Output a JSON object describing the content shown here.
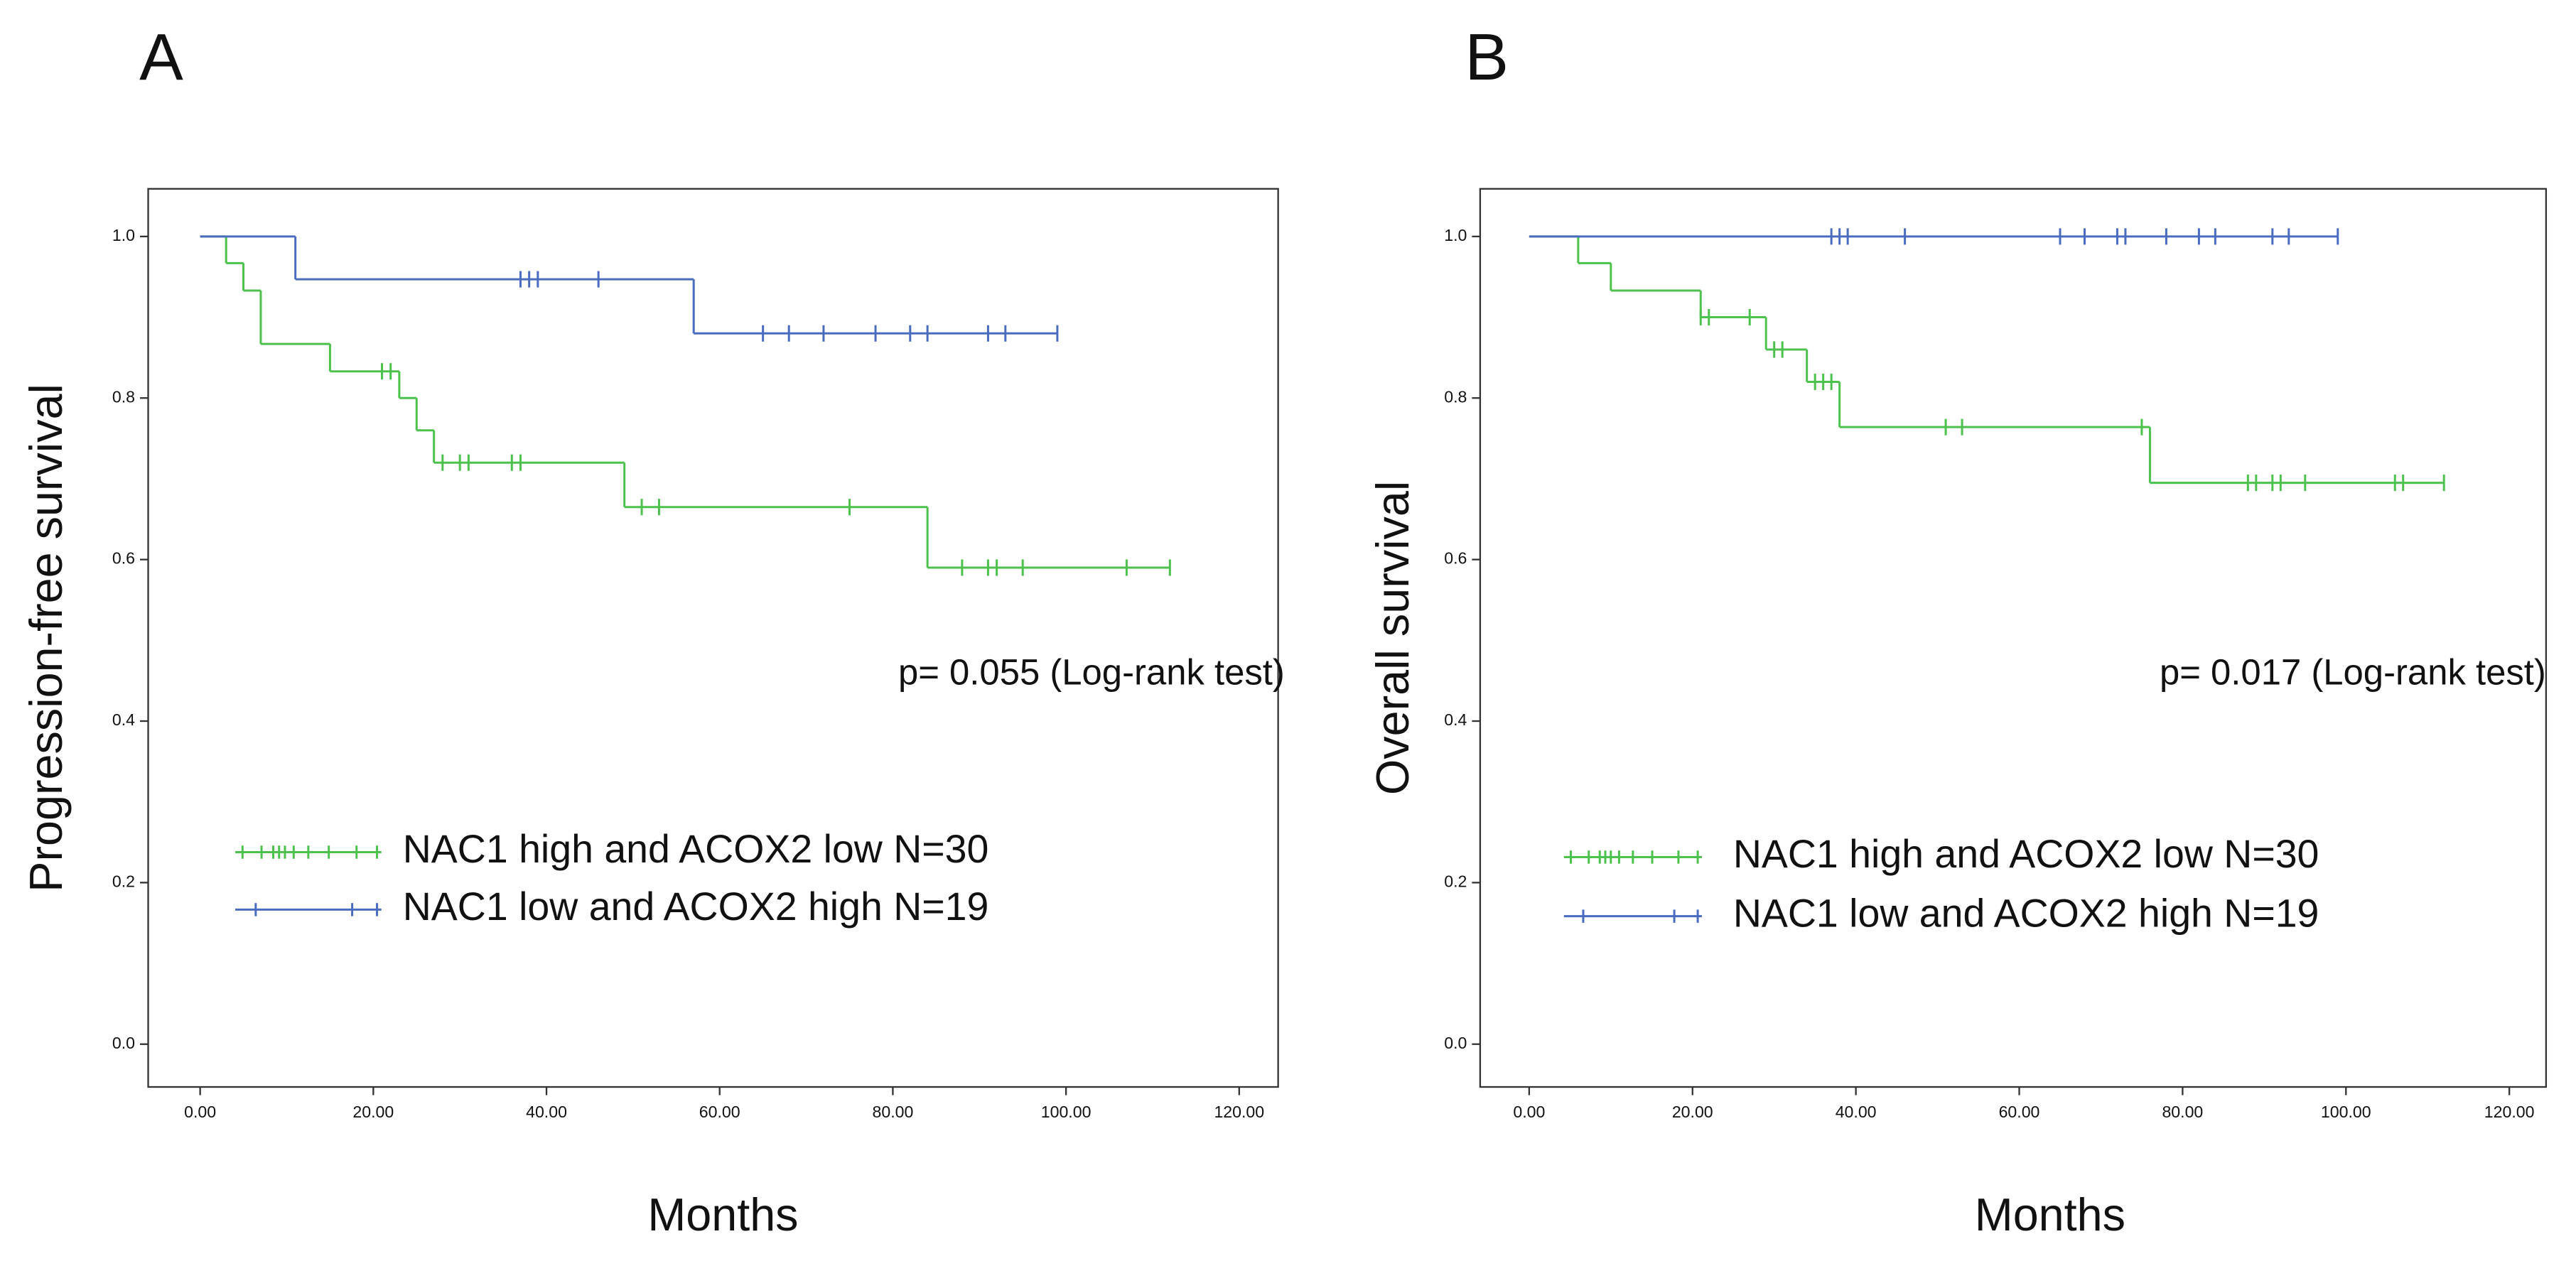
{
  "chart_data": [
    {
      "type": "survival",
      "panel_label": "A",
      "ylabel": "Progression-free survival",
      "xlabel": "Months",
      "annotation": "p= 0.055 (Log-rank test)",
      "xlim": [
        -6,
        124.5
      ],
      "ylim": [
        -0.053,
        1.059
      ],
      "xticks": [
        {
          "value": 0,
          "label": "0.00"
        },
        {
          "value": 20,
          "label": "20.00"
        },
        {
          "value": 40,
          "label": "40.00"
        },
        {
          "value": 60,
          "label": "60.00"
        },
        {
          "value": 80,
          "label": "80.00"
        },
        {
          "value": 100,
          "label": "100.00"
        },
        {
          "value": 120,
          "label": "120.00"
        }
      ],
      "yticks": [
        {
          "value": 0,
          "label": "0.0"
        },
        {
          "value": 0.2,
          "label": "0.2"
        },
        {
          "value": 0.4,
          "label": "0.4"
        },
        {
          "value": 0.6,
          "label": "0.6"
        },
        {
          "value": 0.8,
          "label": "0.8"
        },
        {
          "value": 1,
          "label": "1.0"
        }
      ],
      "series": [
        {
          "name": "NAC1 high and ACOX2 low N=30",
          "color": "#4cc24c",
          "x": [
            0,
            3,
            5,
            7,
            15,
            23,
            25,
            27,
            49,
            84,
            112
          ],
          "values": [
            1,
            0.967,
            0.933,
            0.867,
            0.833,
            0.8,
            0.76,
            0.72,
            0.665,
            0.59,
            0.59
          ],
          "censor_x": [
            21,
            22,
            28,
            30,
            31,
            36,
            37,
            51,
            53,
            75,
            88,
            91,
            92,
            95,
            107,
            112
          ],
          "censor_values": [
            0.833,
            0.833,
            0.72,
            0.72,
            0.72,
            0.72,
            0.72,
            0.665,
            0.665,
            0.665,
            0.59,
            0.59,
            0.59,
            0.59,
            0.59,
            0.59
          ]
        },
        {
          "name": "NAC1 low and ACOX2 high N=19",
          "color": "#4a6cc0",
          "x": [
            0,
            11,
            57,
            99
          ],
          "values": [
            1,
            0.947,
            0.88,
            0.88
          ],
          "censor_x": [
            37,
            38,
            39,
            46,
            65,
            68,
            72,
            78,
            82,
            84,
            91,
            93,
            99
          ],
          "censor_values": [
            0.947,
            0.947,
            0.947,
            0.947,
            0.88,
            0.88,
            0.88,
            0.88,
            0.88,
            0.88,
            0.88,
            0.88,
            0.88
          ]
        }
      ]
    },
    {
      "type": "survival",
      "panel_label": "B",
      "ylabel": "Overall  survival",
      "xlabel": "Months",
      "annotation": "p= 0.017 (Log-rank test)",
      "xlim": [
        -6,
        124.5
      ],
      "ylim": [
        -0.053,
        1.059
      ],
      "xticks": [
        {
          "value": 0,
          "label": "0.00"
        },
        {
          "value": 20,
          "label": "20.00"
        },
        {
          "value": 40,
          "label": "40.00"
        },
        {
          "value": 60,
          "label": "60.00"
        },
        {
          "value": 80,
          "label": "80.00"
        },
        {
          "value": 100,
          "label": "100.00"
        },
        {
          "value": 120,
          "label": "120.00"
        }
      ],
      "yticks": [
        {
          "value": 0,
          "label": "0.0"
        },
        {
          "value": 0.2,
          "label": "0.2"
        },
        {
          "value": 0.4,
          "label": "0.4"
        },
        {
          "value": 0.6,
          "label": "0.6"
        },
        {
          "value": 0.8,
          "label": "0.8"
        },
        {
          "value": 1,
          "label": "1.0"
        }
      ],
      "series": [
        {
          "name": "NAC1 high and ACOX2 low N=30",
          "color": "#4cc24c",
          "x": [
            0,
            6,
            10,
            21,
            29,
            34,
            38,
            76,
            112
          ],
          "values": [
            1,
            0.967,
            0.933,
            0.9,
            0.86,
            0.82,
            0.764,
            0.695,
            0.695
          ],
          "censor_x": [
            21,
            22,
            27,
            30,
            31,
            35,
            36,
            37,
            51,
            53,
            75,
            88,
            89,
            91,
            92,
            95,
            106,
            107,
            112
          ],
          "censor_values": [
            0.9,
            0.9,
            0.9,
            0.86,
            0.86,
            0.82,
            0.82,
            0.82,
            0.764,
            0.764,
            0.764,
            0.695,
            0.695,
            0.695,
            0.695,
            0.695,
            0.695,
            0.695,
            0.695
          ]
        },
        {
          "name": "NAC1 low and ACOX2 high N=19",
          "color": "#4a6cc0",
          "x": [
            0,
            99
          ],
          "values": [
            1,
            1
          ],
          "censor_x": [
            37,
            38,
            39,
            46,
            65,
            68,
            72,
            73,
            78,
            82,
            84,
            91,
            93,
            99
          ],
          "censor_values": [
            1,
            1,
            1,
            1,
            1,
            1,
            1,
            1,
            1,
            1,
            1,
            1,
            1,
            1
          ]
        }
      ]
    }
  ]
}
